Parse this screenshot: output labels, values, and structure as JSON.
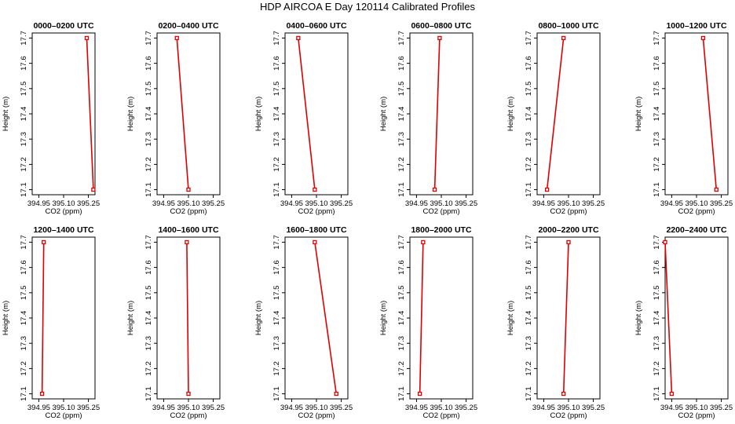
{
  "figure": {
    "title": "HDP AIRCOA E  Day 120114  Calibrated Profiles"
  },
  "chart_data": [
    {
      "type": "line",
      "title": "0000–0200 UTC",
      "xlabel": "CO2 (ppm)",
      "ylabel": "Height (m)",
      "xlim": [
        394.91,
        395.29
      ],
      "ylim": [
        17.08,
        17.72
      ],
      "x_ticks": [
        "394.95",
        "395.10",
        "395.25"
      ],
      "y_ticks": [
        "17.1",
        "17.2",
        "17.3",
        "17.4",
        "17.5",
        "17.6",
        "17.7"
      ],
      "series": [
        {
          "points": [
            {
              "x": 395.24,
              "y": 17.7
            },
            {
              "x": 395.28,
              "y": 17.1
            }
          ]
        }
      ]
    },
    {
      "type": "line",
      "title": "0200–0400 UTC",
      "xlabel": "CO2 (ppm)",
      "ylabel": "Height (m)",
      "xlim": [
        394.91,
        395.29
      ],
      "ylim": [
        17.08,
        17.72
      ],
      "x_ticks": [
        "394.95",
        "395.10",
        "395.25"
      ],
      "y_ticks": [
        "17.1",
        "17.2",
        "17.3",
        "17.4",
        "17.5",
        "17.6",
        "17.7"
      ],
      "series": [
        {
          "points": [
            {
              "x": 395.03,
              "y": 17.7
            },
            {
              "x": 395.1,
              "y": 17.1
            }
          ]
        }
      ]
    },
    {
      "type": "line",
      "title": "0400–0600 UTC",
      "xlabel": "CO2 (ppm)",
      "ylabel": "Height (m)",
      "xlim": [
        394.91,
        395.29
      ],
      "ylim": [
        17.08,
        17.72
      ],
      "x_ticks": [
        "394.95",
        "395.10",
        "395.25"
      ],
      "y_ticks": [
        "17.1",
        "17.2",
        "17.3",
        "17.4",
        "17.5",
        "17.6",
        "17.7"
      ],
      "series": [
        {
          "points": [
            {
              "x": 394.99,
              "y": 17.7
            },
            {
              "x": 395.09,
              "y": 17.1
            }
          ]
        }
      ]
    },
    {
      "type": "line",
      "title": "0600–0800 UTC",
      "xlabel": "CO2 (ppm)",
      "ylabel": "Height (m)",
      "xlim": [
        394.91,
        395.29
      ],
      "ylim": [
        17.08,
        17.72
      ],
      "x_ticks": [
        "394.95",
        "395.10",
        "395.25"
      ],
      "y_ticks": [
        "17.1",
        "17.2",
        "17.3",
        "17.4",
        "17.5",
        "17.6",
        "17.7"
      ],
      "series": [
        {
          "points": [
            {
              "x": 395.09,
              "y": 17.7
            },
            {
              "x": 395.06,
              "y": 17.1
            }
          ]
        }
      ]
    },
    {
      "type": "line",
      "title": "0800–1000 UTC",
      "xlabel": "CO2 (ppm)",
      "ylabel": "Height (m)",
      "xlim": [
        394.91,
        395.29
      ],
      "ylim": [
        17.08,
        17.72
      ],
      "x_ticks": [
        "394.95",
        "395.10",
        "395.25"
      ],
      "y_ticks": [
        "17.1",
        "17.2",
        "17.3",
        "17.4",
        "17.5",
        "17.6",
        "17.7"
      ],
      "series": [
        {
          "points": [
            {
              "x": 395.07,
              "y": 17.7
            },
            {
              "x": 394.97,
              "y": 17.1
            }
          ]
        }
      ]
    },
    {
      "type": "line",
      "title": "1000–1200 UTC",
      "xlabel": "CO2 (ppm)",
      "ylabel": "Height (m)",
      "xlim": [
        394.91,
        395.29
      ],
      "ylim": [
        17.08,
        17.72
      ],
      "x_ticks": [
        "394.95",
        "395.10",
        "395.25"
      ],
      "y_ticks": [
        "17.1",
        "17.2",
        "17.3",
        "17.4",
        "17.5",
        "17.6",
        "17.7"
      ],
      "series": [
        {
          "points": [
            {
              "x": 395.14,
              "y": 17.7
            },
            {
              "x": 395.22,
              "y": 17.1
            }
          ]
        }
      ]
    },
    {
      "type": "line",
      "title": "1200–1400 UTC",
      "xlabel": "CO2 (ppm)",
      "ylabel": "Height (m)",
      "xlim": [
        394.91,
        395.29
      ],
      "ylim": [
        17.08,
        17.72
      ],
      "x_ticks": [
        "394.95",
        "395.10",
        "395.25"
      ],
      "y_ticks": [
        "17.1",
        "17.2",
        "17.3",
        "17.4",
        "17.5",
        "17.6",
        "17.7"
      ],
      "series": [
        {
          "points": [
            {
              "x": 394.98,
              "y": 17.7
            },
            {
              "x": 394.97,
              "y": 17.1
            }
          ]
        }
      ]
    },
    {
      "type": "line",
      "title": "1400–1600 UTC",
      "xlabel": "CO2 (ppm)",
      "ylabel": "Height (m)",
      "xlim": [
        394.91,
        395.29
      ],
      "ylim": [
        17.08,
        17.72
      ],
      "x_ticks": [
        "394.95",
        "395.10",
        "395.25"
      ],
      "y_ticks": [
        "17.1",
        "17.2",
        "17.3",
        "17.4",
        "17.5",
        "17.6",
        "17.7"
      ],
      "series": [
        {
          "points": [
            {
              "x": 395.09,
              "y": 17.7
            },
            {
              "x": 395.1,
              "y": 17.1
            }
          ]
        }
      ]
    },
    {
      "type": "line",
      "title": "1600–1800 UTC",
      "xlabel": "CO2 (ppm)",
      "ylabel": "Height (m)",
      "xlim": [
        394.91,
        395.29
      ],
      "ylim": [
        17.08,
        17.72
      ],
      "x_ticks": [
        "394.95",
        "395.10",
        "395.25"
      ],
      "y_ticks": [
        "17.1",
        "17.2",
        "17.3",
        "17.4",
        "17.5",
        "17.6",
        "17.7"
      ],
      "series": [
        {
          "points": [
            {
              "x": 395.09,
              "y": 17.7
            },
            {
              "x": 395.22,
              "y": 17.1
            }
          ]
        }
      ]
    },
    {
      "type": "line",
      "title": "1800–2000 UTC",
      "xlabel": "CO2 (ppm)",
      "ylabel": "Height (m)",
      "xlim": [
        394.91,
        395.29
      ],
      "ylim": [
        17.08,
        17.72
      ],
      "x_ticks": [
        "394.95",
        "395.10",
        "395.25"
      ],
      "y_ticks": [
        "17.1",
        "17.2",
        "17.3",
        "17.4",
        "17.5",
        "17.6",
        "17.7"
      ],
      "series": [
        {
          "points": [
            {
              "x": 394.99,
              "y": 17.7
            },
            {
              "x": 394.97,
              "y": 17.1
            }
          ]
        }
      ]
    },
    {
      "type": "line",
      "title": "2000–2200 UTC",
      "xlabel": "CO2 (ppm)",
      "ylabel": "Height (m)",
      "xlim": [
        394.91,
        395.29
      ],
      "ylim": [
        17.08,
        17.72
      ],
      "x_ticks": [
        "394.95",
        "395.10",
        "395.25"
      ],
      "y_ticks": [
        "17.1",
        "17.2",
        "17.3",
        "17.4",
        "17.5",
        "17.6",
        "17.7"
      ],
      "series": [
        {
          "points": [
            {
              "x": 395.1,
              "y": 17.7
            },
            {
              "x": 395.07,
              "y": 17.1
            }
          ]
        }
      ]
    },
    {
      "type": "line",
      "title": "2200–2400 UTC",
      "xlabel": "CO2 (ppm)",
      "ylabel": "Height (m)",
      "xlim": [
        394.91,
        395.29
      ],
      "ylim": [
        17.08,
        17.72
      ],
      "x_ticks": [
        "394.95",
        "395.10",
        "395.25"
      ],
      "y_ticks": [
        "17.1",
        "17.2",
        "17.3",
        "17.4",
        "17.5",
        "17.6",
        "17.7"
      ],
      "series": [
        {
          "points": [
            {
              "x": 394.91,
              "y": 17.7
            },
            {
              "x": 394.95,
              "y": 17.1
            }
          ]
        }
      ]
    }
  ],
  "colors": {
    "line": "#dd0000",
    "marker": "#dd0000",
    "axes": "#000000",
    "background": "#ffffff"
  }
}
